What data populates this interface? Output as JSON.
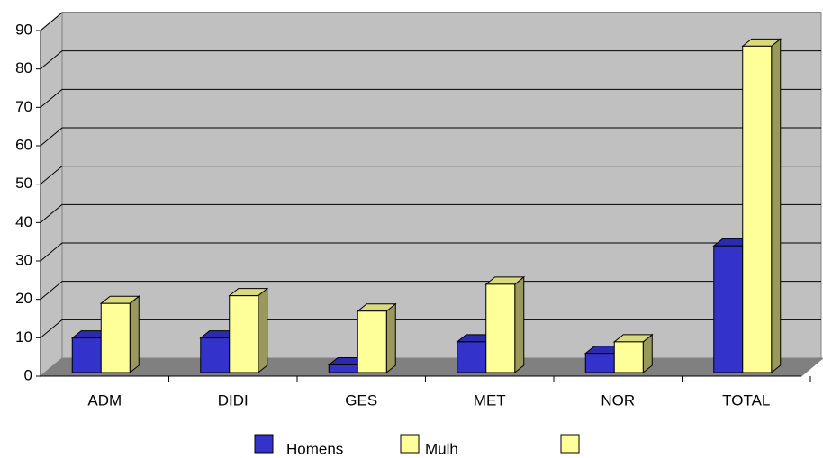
{
  "chart_data": {
    "type": "bar3d",
    "categories": [
      "ADM",
      "DIDI",
      "GES",
      "MET",
      "NOR",
      "TOTAL"
    ],
    "series": [
      {
        "name": "Homens",
        "color": "#3333cc",
        "values": [
          9,
          9,
          2,
          8,
          5,
          33
        ]
      },
      {
        "name": "Mulh",
        "color": "#ffff99",
        "values": [
          18,
          20,
          16,
          23,
          8,
          85
        ]
      }
    ],
    "ylim": [
      0,
      90
    ],
    "yticks": [
      0,
      10,
      20,
      30,
      40,
      50,
      60,
      70,
      80,
      90
    ],
    "grid": true
  }
}
